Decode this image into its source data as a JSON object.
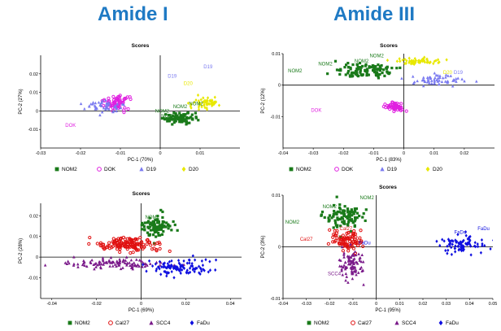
{
  "headings": {
    "left": "Amide I",
    "right": "Amide III"
  },
  "colors": {
    "NOM2": "#1a7a1a",
    "DOK": "#e020e0",
    "D19": "#7a7af0",
    "D20": "#e8e800",
    "Cal27": "#e01010",
    "SCC4": "#7a1a8a",
    "FaDu": "#1010e0",
    "heading": "#1f7ac4"
  },
  "chart_data": [
    {
      "type": "scatter",
      "title": "Scores",
      "xlabel": "PC-1 (70%)",
      "ylabel": "PC-2 (27%)",
      "xlim": [
        -0.03,
        0.02
      ],
      "ylim": [
        -0.02,
        0.03
      ],
      "xticks": [
        "-0.03",
        "-0.02",
        "-0.01",
        "0",
        "0.01"
      ],
      "yticks": [
        "-0.01",
        "0",
        "0.01",
        "0.02"
      ],
      "grid": false,
      "legend": "bottom",
      "series": [
        {
          "name": "NOM2",
          "marker": "square",
          "center": [
            0.005,
            -0.004
          ],
          "spread": [
            0.0035,
            0.0025
          ],
          "count": 90,
          "labels": [
            {
              "text": "NOM2",
              "x": 0.0005,
              "y": -0.001
            },
            {
              "text": "NOM2",
              "x": 0.002,
              "y": -0.0035
            },
            {
              "text": "NOM2",
              "x": 0.009,
              "y": 0.003
            },
            {
              "text": "NOM2",
              "x": 0.005,
              "y": 0.0015
            }
          ]
        },
        {
          "name": "DOK",
          "marker": "circle",
          "center": [
            -0.011,
            0.004
          ],
          "spread": [
            0.003,
            0.003
          ],
          "count": 70,
          "labels": [
            {
              "text": "DOK",
              "x": -0.0225,
              "y": -0.0085
            }
          ]
        },
        {
          "name": "D19",
          "marker": "triangle",
          "center": [
            -0.014,
            0.002
          ],
          "spread": [
            0.004,
            0.003
          ],
          "count": 50,
          "labels": [
            {
              "text": "D19",
              "x": 0.003,
              "y": 0.018
            },
            {
              "text": "D19",
              "x": 0.012,
              "y": 0.023
            }
          ]
        },
        {
          "name": "D20",
          "marker": "diamond",
          "center": [
            0.011,
            0.004
          ],
          "spread": [
            0.003,
            0.003
          ],
          "count": 60,
          "labels": [
            {
              "text": "D20",
              "x": 0.007,
              "y": 0.014
            }
          ]
        }
      ]
    },
    {
      "type": "scatter",
      "title": "Scores",
      "xlabel": "PC-1 (83%)",
      "ylabel": "PC-2 (12%)",
      "xlim": [
        -0.04,
        0.03
      ],
      "ylim": [
        -0.02,
        0.01
      ],
      "xticks": [
        "-0.04",
        "-0.03",
        "-0.02",
        "-0.01",
        "0",
        "0.01",
        "0.02"
      ],
      "yticks": [
        "-0.01",
        "0",
        "0.01"
      ],
      "grid": false,
      "legend": "bottom",
      "series": [
        {
          "name": "NOM2",
          "marker": "square",
          "center": [
            -0.012,
            0.0045
          ],
          "spread": [
            0.008,
            0.0018
          ],
          "count": 110,
          "labels": [
            {
              "text": "NOM2",
              "x": -0.036,
              "y": 0.004
            },
            {
              "text": "NOM2",
              "x": -0.026,
              "y": 0.0062
            },
            {
              "text": "NOM2",
              "x": -0.014,
              "y": 0.0072
            },
            {
              "text": "NOM2",
              "x": -0.009,
              "y": 0.0088
            }
          ]
        },
        {
          "name": "DOK",
          "marker": "circle",
          "center": [
            -0.003,
            -0.007
          ],
          "spread": [
            0.0025,
            0.001
          ],
          "count": 60,
          "labels": [
            {
              "text": "DOK",
              "x": -0.029,
              "y": -0.0085
            }
          ]
        },
        {
          "name": "D19",
          "marker": "triangle",
          "center": [
            0.01,
            0.0015
          ],
          "spread": [
            0.009,
            0.0015
          ],
          "count": 60,
          "labels": [
            {
              "text": "D19",
              "x": 0.018,
              "y": 0.0035
            }
          ]
        },
        {
          "name": "D20",
          "marker": "diamond",
          "center": [
            0.0055,
            0.0075
          ],
          "spread": [
            0.005,
            0.0008
          ],
          "count": 60,
          "labels": [
            {
              "text": "D20",
              "x": 0.0145,
              "y": 0.0035
            }
          ]
        }
      ]
    },
    {
      "type": "scatter",
      "title": "Scores",
      "xlabel": "PC-1 (69%)",
      "ylabel": "PC-2 (28%)",
      "xlim": [
        -0.045,
        0.045
      ],
      "ylim": [
        -0.02,
        0.026
      ],
      "xticks": [
        "-0.04",
        "-0.02",
        "0",
        "0.02",
        "0.04"
      ],
      "yticks": [
        "-0.01",
        "0",
        "0.01",
        "0.02"
      ],
      "grid": false,
      "legend": "bottom",
      "series": [
        {
          "name": "NOM2",
          "marker": "square",
          "center": [
            0.007,
            0.015
          ],
          "spread": [
            0.006,
            0.0045
          ],
          "count": 100,
          "labels": [
            {
              "text": "NOM2",
              "x": 0.005,
              "y": 0.0185
            }
          ]
        },
        {
          "name": "Cal27",
          "marker": "circle",
          "center": [
            -0.006,
            0.006
          ],
          "spread": [
            0.011,
            0.003
          ],
          "count": 140,
          "labels": []
        },
        {
          "name": "SCC4",
          "marker": "triangle",
          "center": [
            -0.012,
            -0.003
          ],
          "spread": [
            0.018,
            0.002
          ],
          "count": 110,
          "labels": []
        },
        {
          "name": "FaDu",
          "marker": "diamond",
          "center": [
            0.018,
            -0.005
          ],
          "spread": [
            0.012,
            0.0035
          ],
          "count": 110,
          "labels": []
        }
      ]
    },
    {
      "type": "scatter",
      "title": "Scores",
      "xlabel": "PC-1 (95%)",
      "ylabel": "PC-2 (3%)",
      "xlim": [
        -0.04,
        0.05
      ],
      "ylim": [
        -0.01,
        0.01
      ],
      "xticks": [
        "-0.04",
        "-0.03",
        "-0.02",
        "-0.01",
        "0",
        "0.01",
        "0.02",
        "0.03",
        "0.04",
        "0.05"
      ],
      "yticks": [
        "-0.01",
        "0",
        "0.01"
      ],
      "grid": false,
      "legend": "bottom",
      "series": [
        {
          "name": "NOM2",
          "marker": "square",
          "center": [
            -0.013,
            0.0058
          ],
          "spread": [
            0.007,
            0.002
          ],
          "count": 100,
          "labels": [
            {
              "text": "NOM2",
              "x": -0.036,
              "y": 0.0045
            },
            {
              "text": "NOM2",
              "x": -0.02,
              "y": 0.0075
            },
            {
              "text": "NOM2",
              "x": -0.004,
              "y": 0.0092
            }
          ]
        },
        {
          "name": "Cal27",
          "marker": "circle",
          "center": [
            -0.012,
            0.0012
          ],
          "spread": [
            0.006,
            0.0016
          ],
          "count": 90,
          "labels": [
            {
              "text": "Cal27",
              "x": -0.013,
              "y": 0.0032
            },
            {
              "text": "Cal27",
              "x": -0.03,
              "y": 0.0012
            }
          ]
        },
        {
          "name": "SCC4",
          "marker": "triangle",
          "center": [
            -0.011,
            -0.0035
          ],
          "spread": [
            0.004,
            0.0025
          ],
          "count": 90,
          "labels": [
            {
              "text": "SCC4",
              "x": -0.018,
              "y": -0.0055
            }
          ]
        },
        {
          "name": "FaDu",
          "marker": "diamond",
          "center": [
            0.037,
            0.0005
          ],
          "spread": [
            0.008,
            0.0014
          ],
          "count": 90,
          "labels": [
            {
              "text": "FaDu",
              "x": 0.046,
              "y": 0.0032
            },
            {
              "text": "FaDu",
              "x": 0.036,
              "y": 0.0025
            },
            {
              "text": "FaDu",
              "x": -0.005,
              "y": 0.0005
            }
          ]
        }
      ]
    }
  ]
}
